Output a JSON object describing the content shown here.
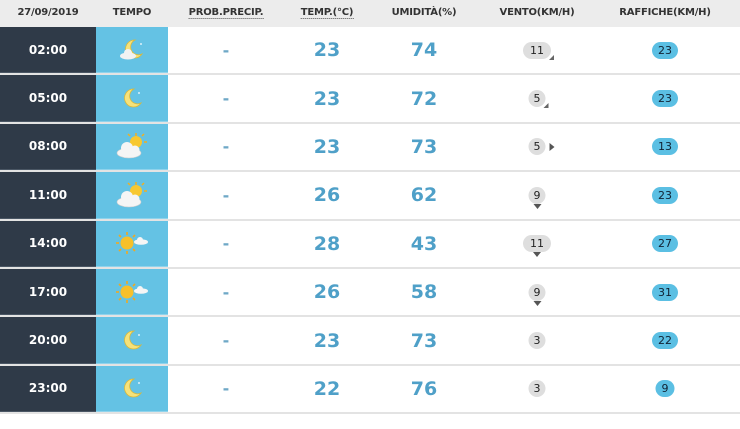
{
  "header": {
    "date": "27/09/2019",
    "tempo": "TEMPO",
    "prob": "PROB.PRECIP.",
    "temp": "TEMP.(°C)",
    "umid": "UMIDITÀ(%)",
    "vento": "VENTO(KM/H)",
    "raffiche": "RAFFICHE(KM/H)"
  },
  "colors": {
    "time_bg": "#2f3a48",
    "tempo_bg": "#64c2e4",
    "value": "#4fa0c8",
    "gust_bg": "#5bbfe3",
    "wind_bg": "#dedede"
  },
  "rows": [
    {
      "time": "02:00",
      "icon": "moon-cloud",
      "prob": "-",
      "temp": "23",
      "umid": "74",
      "wind": "11",
      "wind_dir": "se",
      "gust": "23"
    },
    {
      "time": "05:00",
      "icon": "moon",
      "prob": "-",
      "temp": "23",
      "umid": "72",
      "wind": "5",
      "wind_dir": "se",
      "gust": "23"
    },
    {
      "time": "08:00",
      "icon": "sun-behind-cloud",
      "prob": "-",
      "temp": "23",
      "umid": "73",
      "wind": "5",
      "wind_dir": "e",
      "gust": "13"
    },
    {
      "time": "11:00",
      "icon": "sun-behind-cloud",
      "prob": "-",
      "temp": "26",
      "umid": "62",
      "wind": "9",
      "wind_dir": "s",
      "gust": "23"
    },
    {
      "time": "14:00",
      "icon": "sun-small-cloud",
      "prob": "-",
      "temp": "28",
      "umid": "43",
      "wind": "11",
      "wind_dir": "s",
      "gust": "27"
    },
    {
      "time": "17:00",
      "icon": "sun-small-cloud",
      "prob": "-",
      "temp": "26",
      "umid": "58",
      "wind": "9",
      "wind_dir": "s",
      "gust": "31"
    },
    {
      "time": "20:00",
      "icon": "moon",
      "prob": "-",
      "temp": "23",
      "umid": "73",
      "wind": "3",
      "wind_dir": "",
      "gust": "22"
    },
    {
      "time": "23:00",
      "icon": "moon",
      "prob": "-",
      "temp": "22",
      "umid": "76",
      "wind": "3",
      "wind_dir": "",
      "gust": "9"
    }
  ]
}
